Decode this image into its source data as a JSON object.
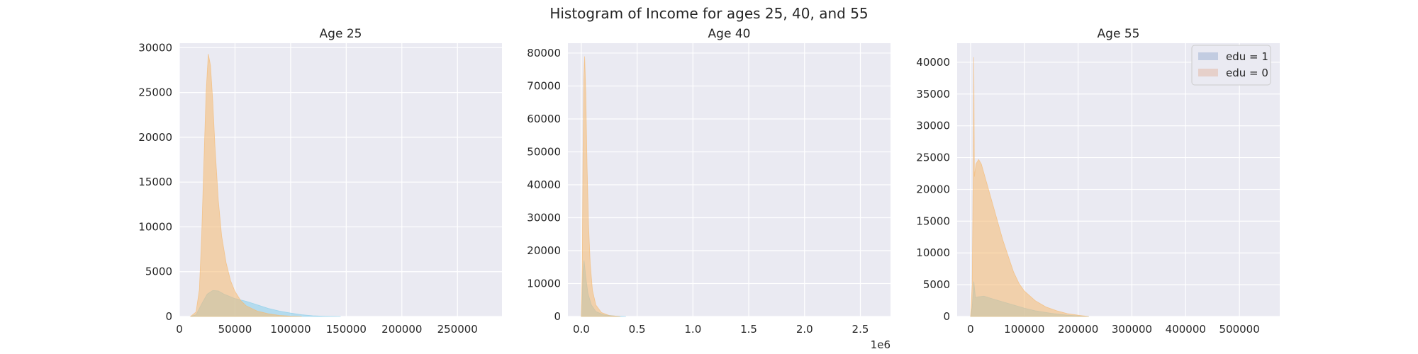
{
  "suptitle": "Histogram of Income for ages 25, 40, and 55",
  "legend": {
    "placement": "top-right",
    "entries": [
      {
        "label": "edu = 1",
        "color": "#4c72b0"
      },
      {
        "label": "edu = 0",
        "color": "#dd8452"
      }
    ]
  },
  "colors": {
    "background": "#eaeaf2",
    "grid": "#ffffff",
    "edu1_fill": "#87ceeb",
    "edu0_fill": "#f5b971",
    "overlap_fill": "#a9c48f"
  },
  "chart_data": [
    {
      "type": "area",
      "title": "Age 25",
      "grid": true,
      "xlim": [
        0,
        290000
      ],
      "ylim": [
        0,
        30500
      ],
      "xticks": [
        0,
        50000,
        100000,
        150000,
        200000,
        250000
      ],
      "xtick_labels": [
        "0",
        "50000",
        "100000",
        "150000",
        "200000",
        "250000"
      ],
      "yticks": [
        0,
        5000,
        10000,
        15000,
        20000,
        25000,
        30000
      ],
      "ytick_labels": [
        "0",
        "5000",
        "10000",
        "15000",
        "20000",
        "25000",
        "30000"
      ],
      "x_offset_label": "",
      "series": [
        {
          "key": "edu1",
          "values": [
            [
              10000,
              0
            ],
            [
              15000,
              200
            ],
            [
              20000,
              1400
            ],
            [
              25000,
              2500
            ],
            [
              30000,
              2900
            ],
            [
              35000,
              2850
            ],
            [
              40000,
              2500
            ],
            [
              50000,
              2000
            ],
            [
              60000,
              1700
            ],
            [
              70000,
              1300
            ],
            [
              80000,
              900
            ],
            [
              90000,
              600
            ],
            [
              100000,
              380
            ],
            [
              110000,
              200
            ],
            [
              120000,
              80
            ],
            [
              130000,
              30
            ],
            [
              145000,
              0
            ]
          ]
        },
        {
          "key": "edu0",
          "values": [
            [
              10000,
              0
            ],
            [
              15000,
              500
            ],
            [
              18000,
              3000
            ],
            [
              20000,
              9000
            ],
            [
              22000,
              17000
            ],
            [
              24000,
              25000
            ],
            [
              26000,
              29300
            ],
            [
              28000,
              28000
            ],
            [
              30000,
              24000
            ],
            [
              32000,
              19000
            ],
            [
              35000,
              13000
            ],
            [
              38000,
              9000
            ],
            [
              42000,
              6000
            ],
            [
              46000,
              4000
            ],
            [
              50000,
              2800
            ],
            [
              55000,
              1800
            ],
            [
              60000,
              1200
            ],
            [
              70000,
              600
            ],
            [
              80000,
              300
            ],
            [
              90000,
              120
            ],
            [
              100000,
              40
            ],
            [
              110000,
              0
            ]
          ]
        }
      ]
    },
    {
      "type": "area",
      "title": "Age 40",
      "grid": true,
      "xlim": [
        -120000,
        2770000
      ],
      "ylim": [
        0,
        83000
      ],
      "xticks": [
        0,
        500000,
        1000000,
        1500000,
        2000000,
        2500000
      ],
      "xtick_labels": [
        "0.0",
        "0.5",
        "1.0",
        "1.5",
        "2.0",
        "2.5"
      ],
      "yticks": [
        0,
        10000,
        20000,
        30000,
        40000,
        50000,
        60000,
        70000,
        80000
      ],
      "ytick_labels": [
        "0",
        "10000",
        "20000",
        "30000",
        "40000",
        "50000",
        "60000",
        "70000",
        "80000"
      ],
      "x_offset_label": "1e6",
      "series": [
        {
          "key": "edu1",
          "values": [
            [
              0,
              0
            ],
            [
              8000,
              6000
            ],
            [
              15000,
              14000
            ],
            [
              25000,
              17000
            ],
            [
              40000,
              12000
            ],
            [
              60000,
              7000
            ],
            [
              90000,
              3500
            ],
            [
              130000,
              1500
            ],
            [
              200000,
              500
            ],
            [
              300000,
              150
            ],
            [
              400000,
              0
            ]
          ]
        },
        {
          "key": "edu0",
          "values": [
            [
              0,
              0
            ],
            [
              8000,
              15000
            ],
            [
              15000,
              50000
            ],
            [
              22000,
              72000
            ],
            [
              30000,
              79000
            ],
            [
              40000,
              68000
            ],
            [
              52000,
              45000
            ],
            [
              65000,
              28000
            ],
            [
              80000,
              16000
            ],
            [
              100000,
              8000
            ],
            [
              130000,
              3500
            ],
            [
              180000,
              1200
            ],
            [
              250000,
              300
            ],
            [
              350000,
              0
            ]
          ]
        }
      ]
    },
    {
      "type": "area",
      "title": "Age 55",
      "grid": true,
      "xlim": [
        -25000,
        575000
      ],
      "ylim": [
        0,
        43000
      ],
      "xticks": [
        0,
        100000,
        200000,
        300000,
        400000,
        500000
      ],
      "xtick_labels": [
        "0",
        "100000",
        "200000",
        "300000",
        "400000",
        "500000"
      ],
      "yticks": [
        0,
        5000,
        10000,
        15000,
        20000,
        25000,
        30000,
        35000,
        40000
      ],
      "ytick_labels": [
        "0",
        "5000",
        "10000",
        "15000",
        "20000",
        "25000",
        "30000",
        "35000",
        "40000"
      ],
      "x_offset_label": "",
      "series": [
        {
          "key": "edu1",
          "values": [
            [
              0,
              0
            ],
            [
              3000,
              1500
            ],
            [
              6000,
              5500
            ],
            [
              9000,
              3000
            ],
            [
              15000,
              3100
            ],
            [
              25000,
              3200
            ],
            [
              40000,
              2800
            ],
            [
              60000,
              2300
            ],
            [
              80000,
              1800
            ],
            [
              100000,
              1300
            ],
            [
              120000,
              900
            ],
            [
              150000,
              500
            ],
            [
              180000,
              200
            ],
            [
              220000,
              0
            ]
          ]
        },
        {
          "key": "edu0",
          "values": [
            [
              0,
              0
            ],
            [
              3000,
              5000
            ],
            [
              5000,
              25000
            ],
            [
              6000,
              40800
            ],
            [
              7000,
              22000
            ],
            [
              10000,
              24000
            ],
            [
              15000,
              24700
            ],
            [
              20000,
              24000
            ],
            [
              30000,
              21000
            ],
            [
              40000,
              18000
            ],
            [
              50000,
              15000
            ],
            [
              60000,
              12000
            ],
            [
              70000,
              9500
            ],
            [
              80000,
              7000
            ],
            [
              90000,
              5200
            ],
            [
              100000,
              4000
            ],
            [
              120000,
              2500
            ],
            [
              140000,
              1500
            ],
            [
              160000,
              900
            ],
            [
              180000,
              450
            ],
            [
              200000,
              200
            ],
            [
              220000,
              0
            ]
          ]
        }
      ]
    }
  ]
}
